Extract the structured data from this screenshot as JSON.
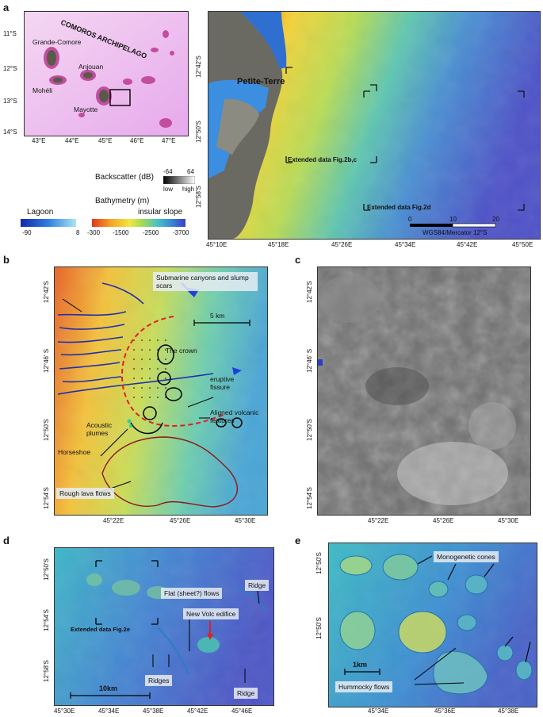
{
  "panel_labels": {
    "a": "a",
    "b": "b",
    "c": "c",
    "d": "d",
    "e": "e"
  },
  "panel_a": {
    "inset": {
      "title": "COMOROS ARCHIPELAGO",
      "islands": [
        "Grande-Comore",
        "Anjouan",
        "Mohéli",
        "Mayotte"
      ],
      "lat_ticks": [
        "11°S",
        "12°S",
        "13°S",
        "14°S"
      ],
      "lon_ticks": [
        "43°E",
        "44°E",
        "45°E",
        "46°E",
        "47°E"
      ]
    },
    "legend": {
      "backscatter_title": "Backscatter (dB)",
      "bs_min": "-64",
      "bs_max": "64",
      "bs_low": "low",
      "bs_high": "high",
      "bathy_title": "Bathymetry (m)",
      "lagoon": "Lagoon",
      "lagoon_min": "-90",
      "lagoon_max": "8",
      "slope": "insular slope",
      "slope_ticks": [
        "-300",
        "-1500",
        "-2500",
        "-3700"
      ]
    },
    "main": {
      "place": "Petite-Terre",
      "box1": "Extended data Fig.2b,c",
      "box2": "Extended data Fig.2d",
      "scale_ticks": [
        "0",
        "10",
        "20"
      ],
      "projection": "WGS84/Mercator 12°S",
      "lat_ticks": [
        "12°42'S",
        "12°50'S",
        "12°58'S"
      ],
      "lon_ticks": [
        "45°10E",
        "45°18E",
        "45°26E",
        "45°34E",
        "45°42E",
        "45°50E"
      ]
    }
  },
  "panel_b": {
    "annotations": {
      "canyons": "Submarine canyons and slump scars",
      "crown": "The crown",
      "fissure": "eruptive fissure",
      "aligned": "Aligned volcanic features",
      "plumes": "Acoustic plumes",
      "horseshoe": "Horseshoe",
      "lava": "Rough lava flows",
      "scale": "5 km"
    },
    "lat_ticks": [
      "12°42'S",
      "12°46' S",
      "12°50'S",
      "12°54'S"
    ],
    "lon_ticks": [
      "45°22E",
      "45°26E",
      "45°30E"
    ]
  },
  "panel_c": {
    "lat_ticks": [
      "12°42'S",
      "12°46' S",
      "12°50'S",
      "12°54'S"
    ],
    "lon_ticks": [
      "45°22E",
      "45°26E",
      "45°30E"
    ]
  },
  "panel_d": {
    "annotations": {
      "flows": "Flat (sheet?) flows",
      "ridge_top": "Ridge",
      "new_volc": "New Volc edifice",
      "extended": "Extended data Fig.2e",
      "ridges": "Ridges",
      "ridge_bottom": "Ridge",
      "scale": "10km"
    },
    "lat_ticks": [
      "12°50'S",
      "12°54'S",
      "12°58'S"
    ],
    "lon_ticks": [
      "45°30E",
      "45°34E",
      "45°38E",
      "45°42E",
      "45°46E"
    ]
  },
  "panel_e": {
    "annotations": {
      "cones": "Monogenetic cones",
      "hummocky": "Hummocky flows",
      "scale": "1km"
    },
    "lat_ticks": [
      "12°50'S",
      "12°50'S"
    ],
    "lon_ticks": [
      "45°34E",
      "45°36E",
      "45°38E"
    ]
  }
}
